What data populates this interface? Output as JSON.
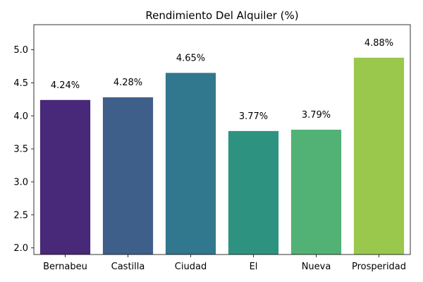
{
  "chart_data": {
    "type": "bar",
    "title": "Rendimiento Del Alquiler (%)",
    "xlabel": "",
    "ylabel": "",
    "categories": [
      "Bernabeu",
      "Castilla",
      "Ciudad",
      "El",
      "Nueva",
      "Prosperidad"
    ],
    "values": [
      4.24,
      4.28,
      4.65,
      3.77,
      3.79,
      4.88
    ],
    "value_labels": [
      "4.24%",
      "4.28%",
      "4.65%",
      "3.77%",
      "3.79%",
      "4.88%"
    ],
    "colors": [
      "#482878",
      "#3e5f8a",
      "#31788e",
      "#2d9380",
      "#52b174",
      "#9ac84c"
    ],
    "ylim": [
      1.9,
      5.38
    ],
    "yticks": [
      2.0,
      2.5,
      3.0,
      3.5,
      4.0,
      4.5,
      5.0
    ],
    "ytick_labels": [
      "2.0",
      "2.5",
      "3.0",
      "3.5",
      "4.0",
      "4.5",
      "5.0"
    ],
    "grid": false,
    "legend": "none"
  }
}
